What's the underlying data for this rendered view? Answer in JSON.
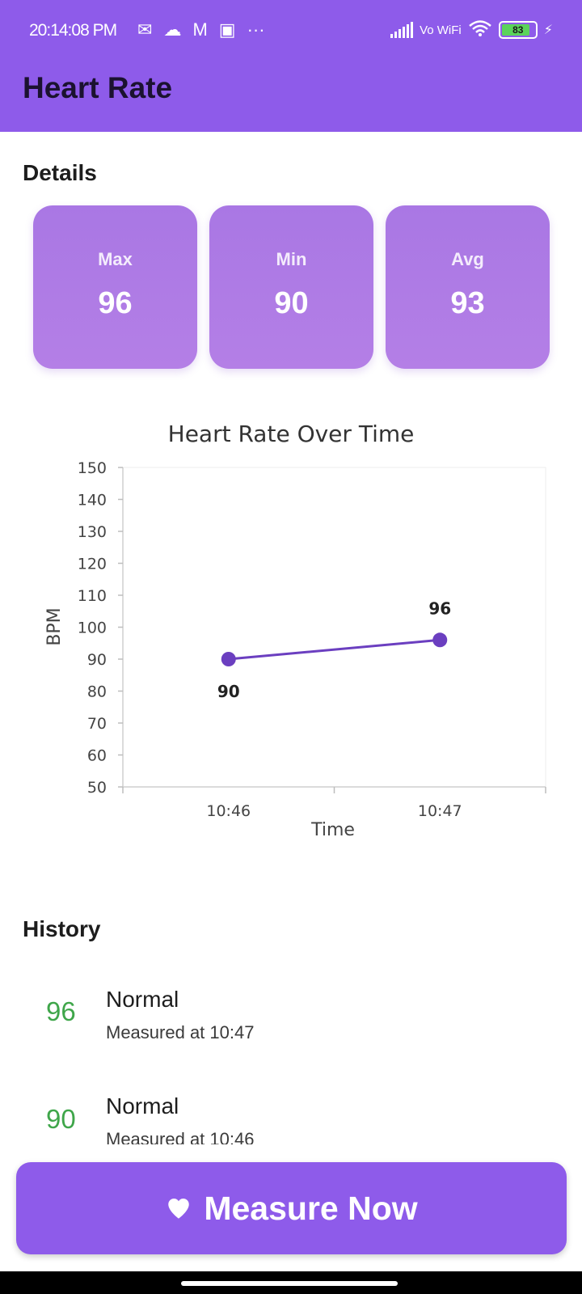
{
  "status_bar": {
    "time": "20:14:08 PM",
    "notification_icons": [
      "chat-icon",
      "cloud-icon",
      "mail-icon",
      "screen-icon"
    ],
    "more": "···",
    "network": "Vo WiFi",
    "battery": "83"
  },
  "header": {
    "title": "Heart Rate"
  },
  "details": {
    "title": "Details",
    "cards": [
      {
        "label": "Max",
        "value": "96"
      },
      {
        "label": "Min",
        "value": "90"
      },
      {
        "label": "Avg",
        "value": "93"
      }
    ]
  },
  "chart_data": {
    "type": "line",
    "title": "Heart Rate Over Time",
    "xlabel": "Time",
    "ylabel": "BPM",
    "ylim": [
      50,
      150
    ],
    "yticks": [
      50,
      60,
      70,
      80,
      90,
      100,
      110,
      120,
      130,
      140,
      150
    ],
    "categories": [
      "10:46",
      "10:47"
    ],
    "series": [
      {
        "values": [
          90,
          96
        ],
        "labels": [
          "90",
          "96"
        ]
      }
    ],
    "line_color": "#6b3fc0",
    "grid": false
  },
  "history": {
    "title": "History",
    "items": [
      {
        "value": "96",
        "status": "Normal",
        "time": "Measured at 10:47"
      },
      {
        "value": "90",
        "status": "Normal",
        "time": "Measured at 10:46"
      }
    ]
  },
  "actions": {
    "measure_label": "Measure Now",
    "measure_icon": "heart-icon"
  },
  "colors": {
    "primary": "#8e5bea",
    "card": "#b07be5",
    "normal": "#3fa64a",
    "line": "#6b3fc0"
  }
}
